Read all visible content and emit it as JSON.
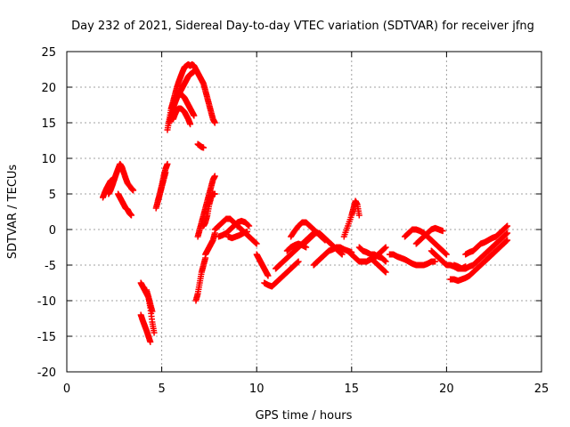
{
  "chart_data": {
    "type": "scatter",
    "title": "Day 232 of 2021, Sidereal Day-to-day VTEC variation (SDTVAR) for receiver jfng",
    "xlabel": "GPS time / hours",
    "ylabel": "SDTVAR / TECUs",
    "xlim": [
      0,
      25
    ],
    "ylim": [
      -20,
      25
    ],
    "xticks": [
      0,
      5,
      10,
      15,
      20,
      25
    ],
    "yticks": [
      -20,
      -15,
      -10,
      -5,
      0,
      5,
      10,
      15,
      20,
      25
    ],
    "xtick_labels": [
      "0",
      "5",
      "10",
      "15",
      "20",
      "25"
    ],
    "ytick_labels": [
      "-20",
      "-15",
      "-10",
      "-5",
      "0",
      "5",
      "10",
      "15",
      "20",
      "25"
    ],
    "grid": true,
    "marker": "+",
    "series": [
      {
        "name": "SDTVAR",
        "color": "#ff0000",
        "segments": [
          {
            "x": [
              1.9,
              2.0,
              2.1,
              2.2,
              2.3,
              2.4,
              2.5
            ],
            "y": [
              4.5,
              5.2,
              5.8,
              6.3,
              6.8,
              7.0,
              7.2
            ]
          },
          {
            "x": [
              2.2,
              2.3,
              2.4,
              2.5,
              2.6,
              2.7,
              2.8,
              2.9,
              3.0,
              3.1,
              3.2,
              3.4,
              3.5
            ],
            "y": [
              5.0,
              5.5,
              6.2,
              7.0,
              7.8,
              8.5,
              9.2,
              8.8,
              8.0,
              7.2,
              6.5,
              5.8,
              5.5
            ]
          },
          {
            "x": [
              2.7,
              2.8,
              2.9,
              3.0,
              3.1,
              3.2,
              3.3,
              3.4
            ],
            "y": [
              5.0,
              4.5,
              4.0,
              3.5,
              3.0,
              2.8,
              2.3,
              2.0
            ]
          },
          {
            "x": [
              3.9,
              4.0,
              4.1,
              4.2,
              4.3,
              4.4,
              4.5
            ],
            "y": [
              -7.5,
              -8.0,
              -8.5,
              -9.0,
              -9.5,
              -10.5,
              -11.5
            ]
          },
          {
            "x": [
              3.9,
              4.0,
              4.1,
              4.2,
              4.3,
              4.4
            ],
            "y": [
              -12.0,
              -12.8,
              -13.5,
              -14.2,
              -15.0,
              -15.8
            ]
          },
          {
            "x": [
              4.2,
              4.3,
              4.4,
              4.5,
              4.6
            ],
            "y": [
              -8.5,
              -9.5,
              -11.0,
              -13.0,
              -14.5
            ]
          },
          {
            "x": [
              4.7,
              4.8,
              4.9,
              5.0,
              5.1,
              5.2
            ],
            "y": [
              3.0,
              4.0,
              5.0,
              6.0,
              7.0,
              8.0
            ]
          },
          {
            "x": [
              4.8,
              4.9,
              5.0,
              5.1,
              5.2,
              5.3
            ],
            "y": [
              4.0,
              5.0,
              6.2,
              7.5,
              8.5,
              9.2
            ]
          },
          {
            "x": [
              5.3,
              5.4,
              5.5,
              5.6,
              5.7,
              5.8,
              5.9,
              6.0,
              6.1,
              6.2,
              6.3,
              6.4,
              6.5
            ],
            "y": [
              14.0,
              15.5,
              17.0,
              18.0,
              19.0,
              20.0,
              20.8,
              21.5,
              22.2,
              22.8,
              23.0,
              23.2,
              23.0
            ]
          },
          {
            "x": [
              5.4,
              5.5,
              5.6,
              5.7,
              5.8,
              5.9,
              6.0,
              6.1,
              6.2,
              6.3,
              6.4,
              6.5,
              6.6,
              6.7
            ],
            "y": [
              15.0,
              16.0,
              17.0,
              17.8,
              18.5,
              19.0,
              19.5,
              20.0,
              20.5,
              21.0,
              21.5,
              21.8,
              22.0,
              22.2
            ]
          },
          {
            "x": [
              5.5,
              5.6,
              5.7,
              5.8,
              5.9,
              6.0,
              6.1,
              6.2,
              6.3,
              6.4,
              6.5,
              6.6,
              6.7
            ],
            "y": [
              17.0,
              17.5,
              18.2,
              18.8,
              19.0,
              19.0,
              18.8,
              18.5,
              18.0,
              17.5,
              17.0,
              16.5,
              16.0
            ]
          },
          {
            "x": [
              5.6,
              5.7,
              5.8,
              5.9,
              6.0,
              6.1,
              6.2,
              6.3,
              6.4,
              6.5
            ],
            "y": [
              15.5,
              16.2,
              16.8,
              17.0,
              17.0,
              16.8,
              16.5,
              16.0,
              15.5,
              14.8
            ]
          },
          {
            "x": [
              6.5,
              6.6,
              6.7,
              6.8,
              6.9,
              7.0,
              7.1,
              7.2,
              7.3,
              7.4,
              7.5,
              7.6,
              7.7,
              7.8
            ],
            "y": [
              23.0,
              23.2,
              23.0,
              22.5,
              22.0,
              21.5,
              21.0,
              20.5,
              19.5,
              18.5,
              17.5,
              16.5,
              15.5,
              15.0
            ]
          },
          {
            "x": [
              6.9,
              7.0,
              7.1,
              7.2
            ],
            "y": [
              12.0,
              11.8,
              11.6,
              11.5
            ]
          },
          {
            "x": [
              6.8,
              6.9,
              7.0,
              7.1,
              7.2,
              7.3
            ],
            "y": [
              -10.0,
              -9.0,
              -7.5,
              -6.0,
              -5.0,
              -4.0
            ]
          },
          {
            "x": [
              6.9,
              7.0,
              7.1,
              7.2,
              7.3,
              7.4,
              7.5,
              7.6,
              7.7,
              7.8
            ],
            "y": [
              -1.0,
              0.0,
              1.0,
              2.0,
              3.0,
              4.0,
              5.0,
              6.0,
              7.0,
              7.5
            ]
          },
          {
            "x": [
              7.2,
              7.3,
              7.4,
              7.5,
              7.6,
              7.7,
              7.8
            ],
            "y": [
              0.5,
              1.0,
              2.0,
              3.5,
              4.5,
              5.0,
              5.0
            ]
          },
          {
            "x": [
              7.3,
              7.4,
              7.5,
              7.6,
              7.7,
              7.8
            ],
            "y": [
              -3.5,
              -3.0,
              -2.5,
              -2.0,
              -1.5,
              -0.5
            ]
          },
          {
            "x": [
              7.8,
              8.0,
              8.2,
              8.4,
              8.6,
              8.8,
              9.0,
              9.2,
              9.4,
              9.6,
              9.8,
              10.0
            ],
            "y": [
              0.0,
              0.5,
              1.0,
              1.5,
              1.5,
              1.0,
              0.5,
              0.0,
              -0.5,
              -1.0,
              -1.5,
              -2.0
            ]
          },
          {
            "x": [
              8.0,
              8.2,
              8.4,
              8.6,
              8.8,
              9.0,
              9.2,
              9.4,
              9.6
            ],
            "y": [
              -1.0,
              -0.8,
              -0.5,
              0.0,
              0.5,
              1.0,
              1.2,
              1.0,
              0.5
            ]
          },
          {
            "x": [
              8.5,
              8.7,
              8.9,
              9.1,
              9.3,
              9.5
            ],
            "y": [
              -1.0,
              -1.2,
              -1.0,
              -0.8,
              -0.5,
              -0.3
            ]
          },
          {
            "x": [
              10.0,
              10.1,
              10.2,
              10.3,
              10.4,
              10.5,
              10.6
            ],
            "y": [
              -3.5,
              -4.0,
              -4.5,
              -5.0,
              -5.5,
              -6.0,
              -6.5
            ]
          },
          {
            "x": [
              10.4,
              10.6,
              10.8,
              11.0,
              11.2,
              11.4,
              11.6,
              11.8,
              12.0,
              12.2
            ],
            "y": [
              -7.5,
              -7.8,
              -8.0,
              -7.5,
              -7.0,
              -6.5,
              -6.0,
              -5.5,
              -5.0,
              -4.5
            ]
          },
          {
            "x": [
              11.0,
              11.2,
              11.4,
              11.6,
              11.8,
              12.0,
              12.2,
              12.4,
              12.6,
              12.8,
              13.0
            ],
            "y": [
              -5.5,
              -5.0,
              -4.5,
              -4.0,
              -3.5,
              -3.0,
              -2.5,
              -2.0,
              -1.5,
              -1.0,
              -0.5
            ]
          },
          {
            "x": [
              11.6,
              11.8,
              12.0,
              12.2,
              12.4,
              12.6
            ],
            "y": [
              -3.0,
              -2.5,
              -2.2,
              -2.0,
              -2.2,
              -2.5
            ]
          },
          {
            "x": [
              11.8,
              12.0,
              12.2,
              12.4,
              12.6,
              12.8,
              13.0,
              13.2,
              13.4,
              13.6
            ],
            "y": [
              -1.0,
              -0.2,
              0.5,
              1.0,
              1.0,
              0.5,
              0.0,
              -0.5,
              -1.0,
              -1.5
            ]
          },
          {
            "x": [
              12.5,
              12.7,
              12.9,
              13.1,
              13.3,
              13.5,
              13.7,
              13.9,
              14.1,
              14.3,
              14.5
            ],
            "y": [
              -2.0,
              -1.5,
              -1.0,
              -0.5,
              -0.5,
              -1.0,
              -1.5,
              -2.0,
              -2.5,
              -3.0,
              -3.5
            ]
          },
          {
            "x": [
              13.0,
              13.2,
              13.4,
              13.6,
              13.8,
              14.0,
              14.2,
              14.4,
              14.6,
              14.8,
              15.0
            ],
            "y": [
              -5.0,
              -4.5,
              -4.0,
              -3.5,
              -3.0,
              -2.8,
              -2.5,
              -2.5,
              -2.8,
              -3.0,
              -3.2
            ]
          },
          {
            "x": [
              14.6,
              14.8,
              15.0,
              15.1,
              15.2,
              15.3,
              15.4
            ],
            "y": [
              -1.0,
              0.5,
              2.0,
              3.0,
              4.0,
              3.5,
              2.0
            ]
          },
          {
            "x": [
              14.8,
              15.0,
              15.2,
              15.4,
              15.6,
              15.8,
              16.0,
              16.2,
              16.4,
              16.6,
              16.8
            ],
            "y": [
              -3.0,
              -3.5,
              -4.0,
              -4.5,
              -4.5,
              -4.5,
              -4.2,
              -4.0,
              -3.5,
              -3.0,
              -2.5
            ]
          },
          {
            "x": [
              15.4,
              15.6,
              15.8,
              16.0,
              16.2,
              16.4,
              16.6,
              16.8
            ],
            "y": [
              -2.5,
              -3.0,
              -3.2,
              -3.5,
              -3.5,
              -3.8,
              -4.0,
              -4.5
            ]
          },
          {
            "x": [
              16.0,
              16.2,
              16.4,
              16.6,
              16.8
            ],
            "y": [
              -4.0,
              -4.5,
              -5.0,
              -5.5,
              -6.0
            ]
          },
          {
            "x": [
              17.0,
              17.2,
              17.4,
              17.6,
              17.8,
              18.0,
              18.2,
              18.4,
              18.6,
              18.8,
              19.0,
              19.2,
              19.4
            ],
            "y": [
              -3.5,
              -3.5,
              -3.8,
              -4.0,
              -4.2,
              -4.5,
              -4.8,
              -5.0,
              -5.0,
              -5.0,
              -4.8,
              -4.5,
              -4.5
            ]
          },
          {
            "x": [
              17.8,
              18.0,
              18.2,
              18.4,
              18.6,
              18.8,
              19.0,
              19.2,
              19.4,
              19.6,
              19.8,
              20.0
            ],
            "y": [
              -1.0,
              -0.5,
              0.0,
              0.0,
              -0.2,
              -0.5,
              -1.0,
              -1.5,
              -2.0,
              -2.5,
              -3.0,
              -3.5
            ]
          },
          {
            "x": [
              18.4,
              18.6,
              18.8,
              19.0,
              19.2,
              19.4,
              19.6,
              19.8
            ],
            "y": [
              -2.0,
              -1.5,
              -1.0,
              -0.5,
              0.0,
              0.2,
              0.0,
              -0.2
            ]
          },
          {
            "x": [
              19.2,
              19.4,
              19.6,
              19.8,
              20.0,
              20.2,
              20.4,
              20.6,
              20.8,
              21.0
            ],
            "y": [
              -3.0,
              -3.5,
              -4.0,
              -4.5,
              -5.0,
              -5.0,
              -5.2,
              -5.5,
              -5.5,
              -5.2
            ]
          },
          {
            "x": [
              20.2,
              20.4,
              20.6,
              20.8,
              21.0,
              21.2,
              21.4,
              21.6,
              21.8,
              22.0,
              22.2,
              22.4,
              22.6
            ],
            "y": [
              -7.0,
              -7.0,
              -7.2,
              -7.0,
              -6.8,
              -6.5,
              -6.0,
              -5.5,
              -5.0,
              -4.5,
              -4.0,
              -3.5,
              -3.0
            ]
          },
          {
            "x": [
              20.4,
              20.6,
              20.8,
              21.0,
              21.2,
              21.4,
              21.6,
              21.8,
              22.0,
              22.2,
              22.4,
              22.6,
              22.8,
              23.0,
              23.2
            ],
            "y": [
              -5.0,
              -5.2,
              -5.5,
              -5.5,
              -5.2,
              -5.0,
              -4.5,
              -4.0,
              -3.5,
              -3.0,
              -2.5,
              -2.0,
              -1.5,
              -1.0,
              -0.5
            ]
          },
          {
            "x": [
              21.0,
              21.2,
              21.4,
              21.6,
              21.8,
              22.0,
              22.2,
              22.4,
              22.6,
              22.8,
              23.0,
              23.2
            ],
            "y": [
              -3.5,
              -3.2,
              -3.0,
              -2.5,
              -2.0,
              -1.8,
              -1.5,
              -1.2,
              -1.0,
              -0.5,
              0.0,
              0.5
            ]
          },
          {
            "x": [
              22.0,
              22.2,
              22.4,
              22.6,
              22.8,
              23.0,
              23.2
            ],
            "y": [
              -4.5,
              -4.0,
              -3.5,
              -3.0,
              -2.5,
              -2.0,
              -1.5
            ]
          }
        ]
      }
    ]
  }
}
